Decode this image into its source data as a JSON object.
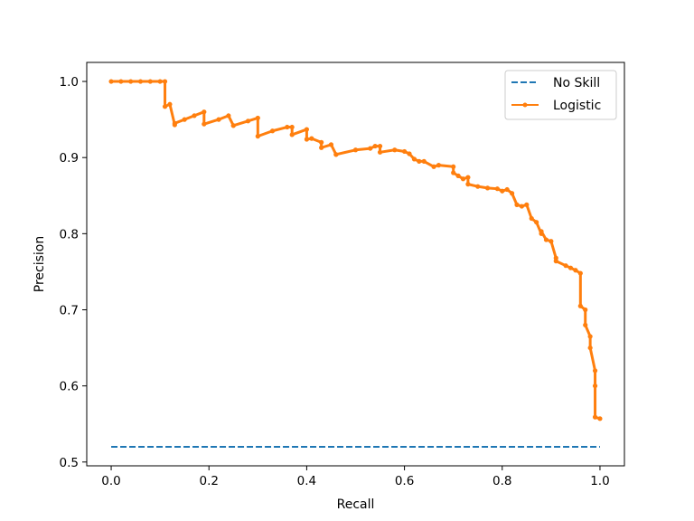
{
  "chart_data": {
    "type": "line",
    "title": "",
    "xlabel": "Recall",
    "ylabel": "Precision",
    "xlim": [
      -0.05,
      1.05
    ],
    "ylim": [
      0.495,
      1.025
    ],
    "xticks": [
      0.0,
      0.2,
      0.4,
      0.6,
      0.8,
      1.0
    ],
    "xtick_labels": [
      "0.0",
      "0.2",
      "0.4",
      "0.6",
      "0.8",
      "1.0"
    ],
    "yticks": [
      0.5,
      0.6,
      0.7,
      0.8,
      0.9,
      1.0
    ],
    "ytick_labels": [
      "0.5",
      "0.6",
      "0.7",
      "0.8",
      "0.9",
      "1.0"
    ],
    "grid": false,
    "legend_position": "top-right",
    "series": [
      {
        "name": "No Skill",
        "style": "dashed",
        "color": "#1f77b4",
        "x": [
          0,
          1
        ],
        "y": [
          0.52,
          0.52
        ]
      },
      {
        "name": "Logistic",
        "style": "line-with-dots",
        "color": "#ff7f0e",
        "x": [
          0.0,
          0.02,
          0.04,
          0.06,
          0.08,
          0.1,
          0.11,
          0.11,
          0.12,
          0.13,
          0.13,
          0.15,
          0.17,
          0.19,
          0.19,
          0.22,
          0.24,
          0.25,
          0.25,
          0.28,
          0.3,
          0.3,
          0.33,
          0.36,
          0.37,
          0.37,
          0.4,
          0.4,
          0.41,
          0.43,
          0.43,
          0.45,
          0.46,
          0.46,
          0.5,
          0.53,
          0.54,
          0.55,
          0.55,
          0.58,
          0.6,
          0.61,
          0.62,
          0.63,
          0.64,
          0.66,
          0.67,
          0.7,
          0.7,
          0.71,
          0.72,
          0.73,
          0.73,
          0.75,
          0.77,
          0.79,
          0.8,
          0.81,
          0.82,
          0.83,
          0.84,
          0.85,
          0.86,
          0.87,
          0.88,
          0.88,
          0.89,
          0.9,
          0.91,
          0.91,
          0.93,
          0.94,
          0.95,
          0.96,
          0.96,
          0.97,
          0.97,
          0.98,
          0.98,
          0.99,
          0.99,
          0.99,
          1.0
        ],
        "y": [
          1.0,
          1.0,
          1.0,
          1.0,
          1.0,
          1.0,
          1.0,
          0.967,
          0.97,
          0.943,
          0.945,
          0.95,
          0.955,
          0.96,
          0.944,
          0.95,
          0.955,
          0.942,
          0.942,
          0.948,
          0.952,
          0.928,
          0.935,
          0.94,
          0.94,
          0.93,
          0.937,
          0.924,
          0.925,
          0.92,
          0.913,
          0.917,
          0.904,
          0.904,
          0.91,
          0.912,
          0.915,
          0.915,
          0.907,
          0.91,
          0.908,
          0.905,
          0.898,
          0.895,
          0.895,
          0.888,
          0.89,
          0.888,
          0.88,
          0.876,
          0.872,
          0.874,
          0.865,
          0.862,
          0.86,
          0.859,
          0.856,
          0.858,
          0.853,
          0.838,
          0.836,
          0.838,
          0.82,
          0.815,
          0.8,
          0.803,
          0.792,
          0.79,
          0.768,
          0.764,
          0.758,
          0.755,
          0.752,
          0.748,
          0.705,
          0.7,
          0.68,
          0.665,
          0.65,
          0.62,
          0.6,
          0.559,
          0.557
        ]
      }
    ]
  }
}
